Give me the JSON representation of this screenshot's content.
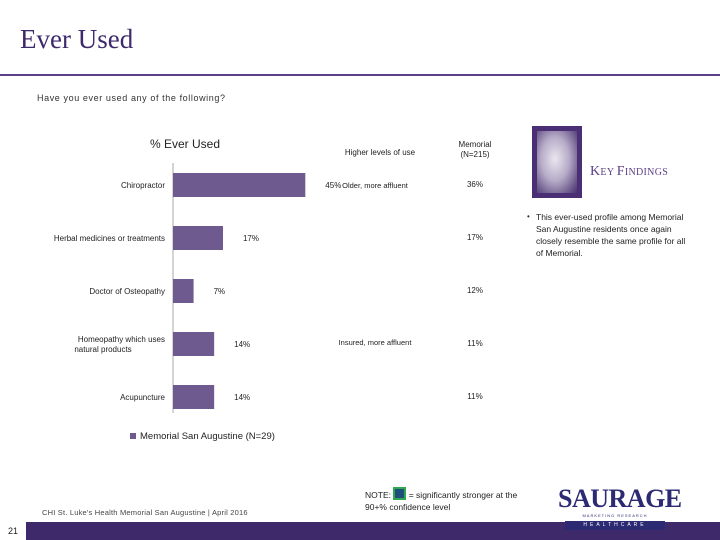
{
  "header": {
    "title": "Ever Used"
  },
  "question": "Have you ever used any of the following?",
  "chart_data": {
    "type": "bar",
    "orientation": "horizontal",
    "title": "% Ever Used",
    "categories": [
      "Chiropractor",
      "Herbal medicines or treatments",
      "Doctor of Osteopathy",
      "Homeopathy which uses natural products",
      "Acupuncture"
    ],
    "series": [
      {
        "name": "Memorial San Augustine (N=29)",
        "values": [
          45,
          17,
          7,
          14,
          14
        ],
        "color": "#6e5a8f"
      }
    ],
    "value_labels": [
      "45%",
      "17%",
      "7%",
      "14%",
      "14%"
    ],
    "xlim": [
      0,
      50
    ],
    "grid": false,
    "legend": "bottom-left"
  },
  "comparison": {
    "higher_header": "Higher levels of use",
    "memorial_header_line1": "Memorial",
    "memorial_header_line2": "(N=215)",
    "higher_levels": [
      "Older, more affluent",
      "",
      "",
      "Insured, more affluent",
      ""
    ],
    "memorial_values": [
      "36%",
      "17%",
      "12%",
      "11%",
      "11%"
    ]
  },
  "key_findings": {
    "label_first_big": "K",
    "label_first_rest": "EY ",
    "label_second_big": "F",
    "label_second_rest": "INDINGS",
    "bullet": "This ever-used profile among Memorial San Augustine residents once again closely resemble the same profile for all of Memorial."
  },
  "note": {
    "prefix": "NOTE:",
    "text": "= significantly stronger at the 90+% confidence level",
    "box_color": "#2fa84f"
  },
  "footer": {
    "source": "CHI St. Luke's Health Memorial San Augustine | April 2016",
    "page": "21"
  },
  "logo": {
    "main": "SAURAGE",
    "sub": "MARKETING RESEARCH",
    "band": "HEALTHCARE"
  }
}
